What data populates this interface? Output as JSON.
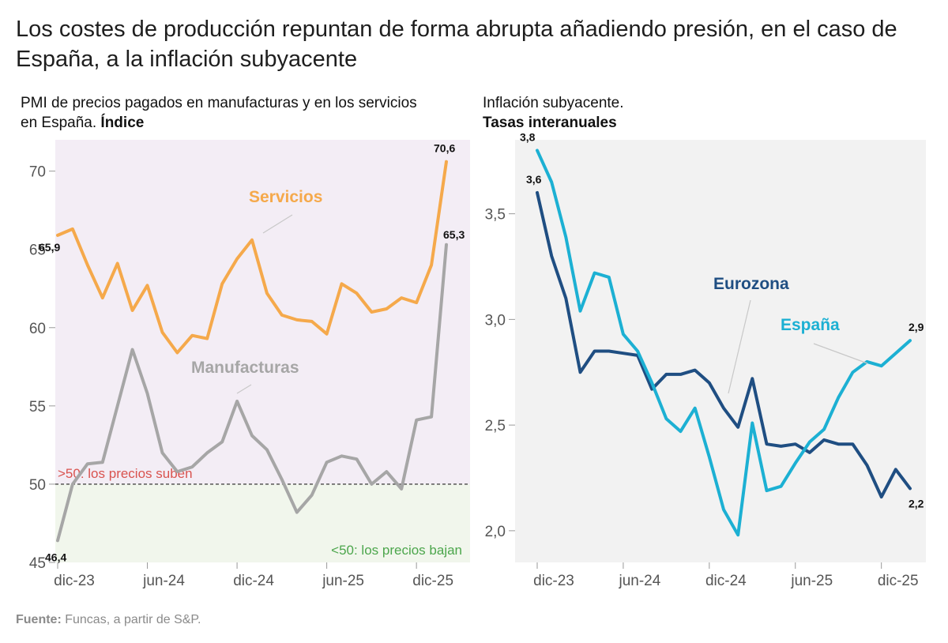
{
  "headline": "Los costes de producción repuntan de forma abrupta añadiendo presión, en el caso de España, a la inflación subyacente",
  "source": {
    "label": "Fuente:",
    "text": "Funcas, a partir de S&P."
  },
  "colors": {
    "servicios": "#f5a94b",
    "manufacturas": "#a6a6a6",
    "eurozona": "#1f4e82",
    "espana": "#1cb0d3",
    "above_bg": "#f3edf5",
    "below_bg": "#f1f6ec",
    "panel_bg": "#f2f2f2",
    "above_text": "#d9534f",
    "below_text": "#4ca64c"
  },
  "chart_data": [
    {
      "type": "line",
      "title": "PMI de precios pagados en manufacturas y en los servicios en España.",
      "title_bold": "Índice",
      "ylim": [
        45,
        72
      ],
      "yticks": [
        45,
        50,
        55,
        60,
        65,
        70
      ],
      "ytick_labels": [
        "45",
        "50",
        "55",
        "60",
        "65",
        "70"
      ],
      "x_tick_labels": [
        "dic-23",
        "jun-24",
        "dic-24",
        "jun-25",
        "dic-25"
      ],
      "x_tick_index": [
        0,
        6,
        12,
        18,
        24
      ],
      "reference_line": {
        "y": 50,
        "above_label": ">50: los precios suben",
        "below_label": "<50: los precios bajan"
      },
      "series": [
        {
          "name": "Servicios",
          "key": "servicios",
          "values": [
            65.9,
            66.3,
            64.0,
            61.9,
            64.1,
            61.1,
            62.7,
            59.7,
            58.4,
            59.5,
            59.3,
            62.8,
            64.4,
            65.6,
            62.2,
            60.8,
            60.5,
            60.4,
            59.6,
            62.8,
            62.2,
            61.0,
            61.2,
            61.9,
            61.6,
            64.0,
            70.6
          ],
          "labels": {
            "0": "65,9",
            "26": "70,6"
          }
        },
        {
          "name": "Manufacturas",
          "key": "manufacturas",
          "values": [
            46.4,
            50.0,
            51.3,
            51.4,
            55.0,
            58.6,
            55.8,
            52.0,
            50.8,
            51.1,
            52.0,
            52.7,
            55.3,
            53.1,
            52.2,
            50.3,
            48.2,
            49.3,
            51.4,
            51.8,
            51.6,
            50.0,
            50.8,
            49.7,
            54.1,
            54.3,
            65.3
          ],
          "labels": {
            "0": "46,4",
            "26": "65,3"
          }
        }
      ]
    },
    {
      "type": "line",
      "title": "Inflación subyacente.",
      "title_bold": "Tasas interanuales",
      "ylim": [
        1.85,
        3.85
      ],
      "yticks": [
        2.0,
        2.5,
        3.0,
        3.5
      ],
      "ytick_labels": [
        "2,0",
        "2,5",
        "3,0",
        "3,5"
      ],
      "x_tick_labels": [
        "dic-23",
        "jun-24",
        "dic-24",
        "jun-25",
        "dic-25"
      ],
      "x_tick_index": [
        0,
        6,
        12,
        18,
        24
      ],
      "series": [
        {
          "name": "Eurozona",
          "key": "eurozona",
          "values": [
            3.6,
            3.3,
            3.1,
            2.75,
            2.85,
            2.85,
            2.84,
            2.83,
            2.67,
            2.74,
            2.74,
            2.76,
            2.7,
            2.58,
            2.49,
            2.72,
            2.41,
            2.4,
            2.41,
            2.37,
            2.43,
            2.41,
            2.41,
            2.31,
            2.16,
            2.29,
            2.2
          ],
          "labels": {
            "0": "3,6",
            "26": "2,2"
          }
        },
        {
          "name": "España",
          "key": "espana",
          "values": [
            3.8,
            3.65,
            3.39,
            3.04,
            3.22,
            3.2,
            2.93,
            2.85,
            2.7,
            2.53,
            2.47,
            2.58,
            2.35,
            2.1,
            1.98,
            2.51,
            2.19,
            2.21,
            2.32,
            2.42,
            2.48,
            2.63,
            2.75,
            2.8,
            2.78,
            2.84,
            2.9
          ],
          "labels": {
            "0": "3,8",
            "26": "2,9"
          }
        }
      ]
    }
  ]
}
